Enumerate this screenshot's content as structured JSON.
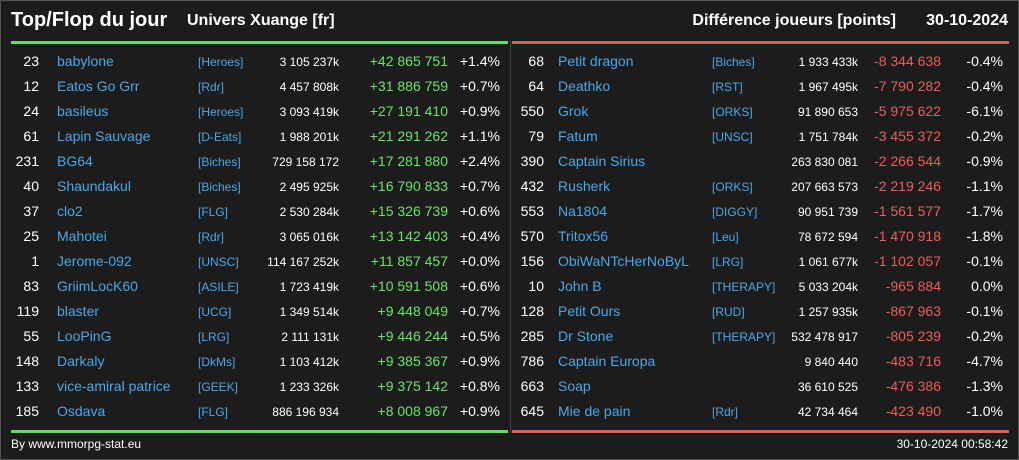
{
  "header": {
    "title": "Top/Flop du jour",
    "universe": "Univers Xuange [fr]",
    "subtitle": "Différence joueurs [points]",
    "date": "30-10-2024"
  },
  "top": [
    {
      "rank": "23",
      "name": "babylone",
      "guild": "[Heroes]",
      "score": "3 105 237k",
      "diff": "+42 865 751",
      "pct": "+1.4%"
    },
    {
      "rank": "12",
      "name": "Eatos Go Grr",
      "guild": "[Rdr]",
      "score": "4 457 808k",
      "diff": "+31 886 759",
      "pct": "+0.7%"
    },
    {
      "rank": "24",
      "name": "basileus",
      "guild": "[Heroes]",
      "score": "3 093 419k",
      "diff": "+27 191 410",
      "pct": "+0.9%"
    },
    {
      "rank": "61",
      "name": "Lapin Sauvage",
      "guild": "[D-Eats]",
      "score": "1 988 201k",
      "diff": "+21 291 262",
      "pct": "+1.1%"
    },
    {
      "rank": "231",
      "name": "BG64",
      "guild": "[Biches]",
      "score": "729 158 172",
      "diff": "+17 281 880",
      "pct": "+2.4%"
    },
    {
      "rank": "40",
      "name": "Shaundakul",
      "guild": "[Biches]",
      "score": "2 495 925k",
      "diff": "+16 790 833",
      "pct": "+0.7%"
    },
    {
      "rank": "37",
      "name": "clo2",
      "guild": "[FLG]",
      "score": "2 530 284k",
      "diff": "+15 326 739",
      "pct": "+0.6%"
    },
    {
      "rank": "25",
      "name": "Mahotei",
      "guild": "[Rdr]",
      "score": "3 065 016k",
      "diff": "+13 142 403",
      "pct": "+0.4%"
    },
    {
      "rank": "1",
      "name": "Jerome-092",
      "guild": "[UNSC]",
      "score": "114 167 252k",
      "diff": "+11 857 457",
      "pct": "+0.0%"
    },
    {
      "rank": "83",
      "name": "GriimLocK60",
      "guild": "[ASILE]",
      "score": "1 723 419k",
      "diff": "+10 591 508",
      "pct": "+0.6%"
    },
    {
      "rank": "119",
      "name": "blaster",
      "guild": "[UCG]",
      "score": "1 349 514k",
      "diff": "+9 448 049",
      "pct": "+0.7%"
    },
    {
      "rank": "55",
      "name": "LooPinG",
      "guild": "[LRG]",
      "score": "2 111 131k",
      "diff": "+9 446 244",
      "pct": "+0.5%"
    },
    {
      "rank": "148",
      "name": "Darkaly",
      "guild": "[DkMs]",
      "score": "1 103 412k",
      "diff": "+9 385 367",
      "pct": "+0.9%"
    },
    {
      "rank": "133",
      "name": "vice-amiral patrice",
      "guild": "[GEEK]",
      "score": "1 233 326k",
      "diff": "+9 375 142",
      "pct": "+0.8%"
    },
    {
      "rank": "185",
      "name": "Osdava",
      "guild": "[FLG]",
      "score": "886 196 934",
      "diff": "+8 008 967",
      "pct": "+0.9%"
    }
  ],
  "flop": [
    {
      "rank": "68",
      "name": "Petit dragon",
      "guild": "[Biches]",
      "score": "1 933 433k",
      "diff": "-8 344 638",
      "pct": "-0.4%"
    },
    {
      "rank": "64",
      "name": "Deathko",
      "guild": "[RST]",
      "score": "1 967 495k",
      "diff": "-7 790 282",
      "pct": "-0.4%"
    },
    {
      "rank": "550",
      "name": "Grok",
      "guild": "[ORKS]",
      "score": "91 890 653",
      "diff": "-5 975 622",
      "pct": "-6.1%"
    },
    {
      "rank": "79",
      "name": "Fatum",
      "guild": "[UNSC]",
      "score": "1 751 784k",
      "diff": "-3 455 372",
      "pct": "-0.2%"
    },
    {
      "rank": "390",
      "name": "Captain Sirius",
      "guild": "",
      "score": "263 830 081",
      "diff": "-2 266 544",
      "pct": "-0.9%"
    },
    {
      "rank": "432",
      "name": "Rusherk",
      "guild": "[ORKS]",
      "score": "207 663 573",
      "diff": "-2 219 246",
      "pct": "-1.1%"
    },
    {
      "rank": "553",
      "name": "Na1804",
      "guild": "[DIGGY]",
      "score": "90 951 739",
      "diff": "-1 561 577",
      "pct": "-1.7%"
    },
    {
      "rank": "570",
      "name": "Tritox56",
      "guild": "[Leu]",
      "score": "78 672 594",
      "diff": "-1 470 918",
      "pct": "-1.8%"
    },
    {
      "rank": "156",
      "name": "ObiWaNTcHerNoByL",
      "guild": "[LRG]",
      "score": "1 061 677k",
      "diff": "-1 102 057",
      "pct": "-0.1%"
    },
    {
      "rank": "10",
      "name": "John B",
      "guild": "[THERAPY]",
      "score": "5 033 204k",
      "diff": "-965 884",
      "pct": "0.0%"
    },
    {
      "rank": "128",
      "name": "Petit Ours",
      "guild": "[RUD]",
      "score": "1 257 935k",
      "diff": "-867 963",
      "pct": "-0.1%"
    },
    {
      "rank": "285",
      "name": "Dr Stone",
      "guild": "[THERAPY]",
      "score": "532 478 917",
      "diff": "-805 239",
      "pct": "-0.2%"
    },
    {
      "rank": "786",
      "name": "Captain Europa",
      "guild": "",
      "score": "9 840 440",
      "diff": "-483 716",
      "pct": "-4.7%"
    },
    {
      "rank": "663",
      "name": "Soap",
      "guild": "",
      "score": "36 610 525",
      "diff": "-476 386",
      "pct": "-1.3%"
    },
    {
      "rank": "645",
      "name": "Mie de pain",
      "guild": "[Rdr]",
      "score": "42 734 464",
      "diff": "-423 490",
      "pct": "-1.0%"
    }
  ],
  "footer": {
    "by": "By www.mmorpg-stat.eu",
    "timestamp": "30-10-2024 00:58:42"
  },
  "colors": {
    "top_accent": "#5ee05e",
    "flop_accent": "#e05a5a",
    "link": "#4aa8e8"
  }
}
